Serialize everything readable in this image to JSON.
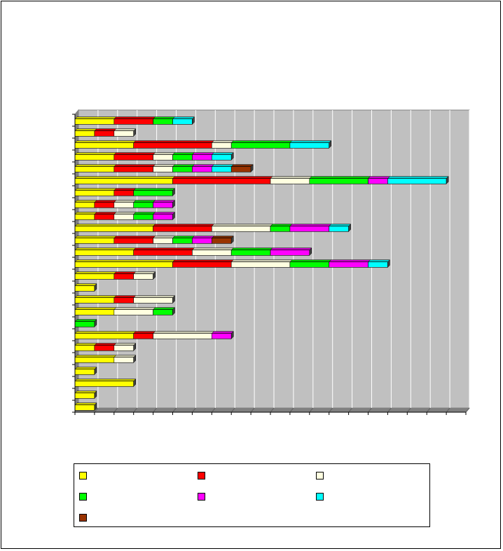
{
  "chart_data": {
    "type": "bar",
    "orientation": "horizontal",
    "stacked": true,
    "style": "3d",
    "title": "",
    "xlabel": "",
    "ylabel": "",
    "xlim": [
      0,
      20
    ],
    "grid": true,
    "legend_position": "bottom",
    "categories": [
      "",
      "",
      "",
      "",
      "",
      "",
      "",
      "",
      "",
      "",
      "",
      "",
      "",
      "",
      "",
      "",
      "",
      "",
      "",
      "",
      "",
      "",
      "",
      "",
      ""
    ],
    "series": [
      {
        "color": "#FFFF00",
        "values": [
          2,
          1,
          3,
          2,
          2,
          5,
          2,
          1,
          1,
          4,
          2,
          3,
          5,
          2,
          1,
          2,
          2,
          0,
          3,
          1,
          2,
          1,
          3,
          1,
          1
        ]
      },
      {
        "color": "#FF0000",
        "values": [
          2,
          1,
          4,
          2,
          2,
          5,
          1,
          1,
          1,
          3,
          2,
          3,
          3,
          1,
          0,
          1,
          0,
          0,
          1,
          1,
          0,
          0,
          0,
          0,
          0
        ]
      },
      {
        "color": "#FFFFE0",
        "values": [
          0,
          1,
          1,
          1,
          1,
          2,
          0,
          1,
          1,
          3,
          1,
          2,
          3,
          1,
          0,
          2,
          2,
          0,
          3,
          1,
          1,
          0,
          0,
          0,
          0
        ]
      },
      {
        "color": "#00FF00",
        "values": [
          1,
          0,
          3,
          1,
          1,
          3,
          2,
          1,
          1,
          1,
          1,
          2,
          2,
          0,
          0,
          0,
          1,
          1,
          0,
          0,
          0,
          0,
          0,
          0,
          0
        ]
      },
      {
        "color": "#FF00FF",
        "values": [
          0,
          0,
          0,
          1,
          1,
          1,
          0,
          1,
          1,
          2,
          1,
          2,
          2,
          0,
          0,
          0,
          0,
          0,
          1,
          0,
          0,
          0,
          0,
          0,
          0
        ]
      },
      {
        "color": "#00FFFF",
        "values": [
          1,
          0,
          2,
          1,
          1,
          3,
          0,
          0,
          0,
          1,
          0,
          0,
          1,
          0,
          0,
          0,
          0,
          0,
          0,
          0,
          0,
          0,
          0,
          0,
          0
        ]
      },
      {
        "color": "#993300",
        "values": [
          0,
          0,
          0,
          0,
          1,
          0,
          0,
          0,
          0,
          0,
          1,
          0,
          0,
          0,
          0,
          0,
          0,
          0,
          0,
          0,
          0,
          0,
          0,
          0,
          0
        ]
      }
    ],
    "legend": [
      {
        "label": "",
        "color": "#FFFF00"
      },
      {
        "label": "",
        "color": "#FF0000"
      },
      {
        "label": "",
        "color": "#FFFFE0"
      },
      {
        "label": "",
        "color": "#00FF00"
      },
      {
        "label": "",
        "color": "#FF00FF"
      },
      {
        "label": "",
        "color": "#00FFFF"
      },
      {
        "label": "",
        "color": "#993300"
      }
    ]
  },
  "colors": {
    "plot_wall": "#C0C0C0",
    "plot_floor": "#808080",
    "gridline": "#FFFFFF",
    "axis": "#000000"
  }
}
